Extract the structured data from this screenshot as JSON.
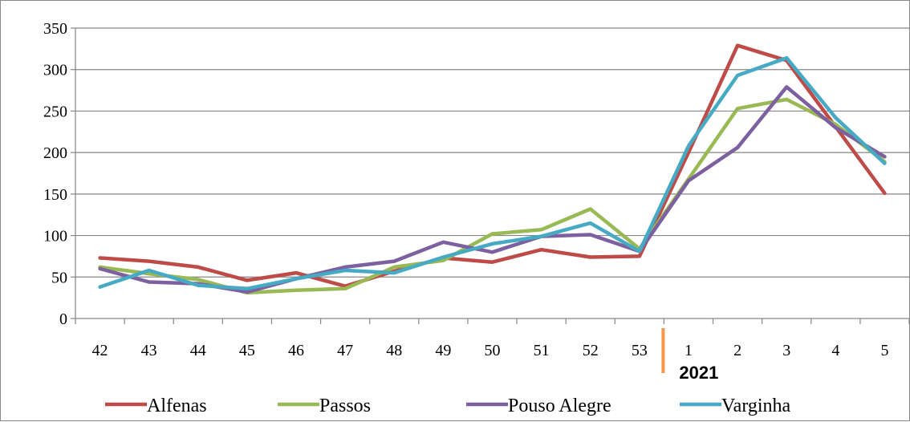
{
  "chart_data": {
    "type": "line",
    "title": "",
    "xlabel": "",
    "ylabel": "",
    "categories": [
      "42",
      "43",
      "44",
      "45",
      "46",
      "47",
      "48",
      "49",
      "50",
      "51",
      "52",
      "53",
      "1",
      "2",
      "3",
      "4",
      "5"
    ],
    "year_label": "2021",
    "ylim": [
      0,
      350
    ],
    "yticks": [
      0,
      50,
      100,
      150,
      200,
      250,
      300,
      350
    ],
    "grid": true,
    "legend_position": "bottom",
    "series": [
      {
        "name": "Alfenas",
        "color": "#be4b48",
        "values": [
          73,
          69,
          62,
          46,
          55,
          39,
          57,
          73,
          68,
          83,
          74,
          75,
          200,
          329,
          311,
          231,
          151
        ]
      },
      {
        "name": "Passos",
        "color": "#98b954",
        "values": [
          62,
          54,
          47,
          31,
          34,
          36,
          62,
          70,
          102,
          107,
          132,
          84,
          168,
          253,
          264,
          234,
          189
        ]
      },
      {
        "name": "Pouso Alegre",
        "color": "#7d60a0",
        "values": [
          60,
          44,
          42,
          32,
          48,
          62,
          69,
          92,
          80,
          99,
          101,
          81,
          166,
          206,
          279,
          230,
          195
        ]
      },
      {
        "name": "Varginha",
        "color": "#46aac5",
        "values": [
          38,
          58,
          40,
          36,
          48,
          58,
          55,
          74,
          90,
          99,
          115,
          81,
          208,
          293,
          314,
          242,
          187
        ]
      }
    ],
    "divider_color": "#f79646"
  }
}
